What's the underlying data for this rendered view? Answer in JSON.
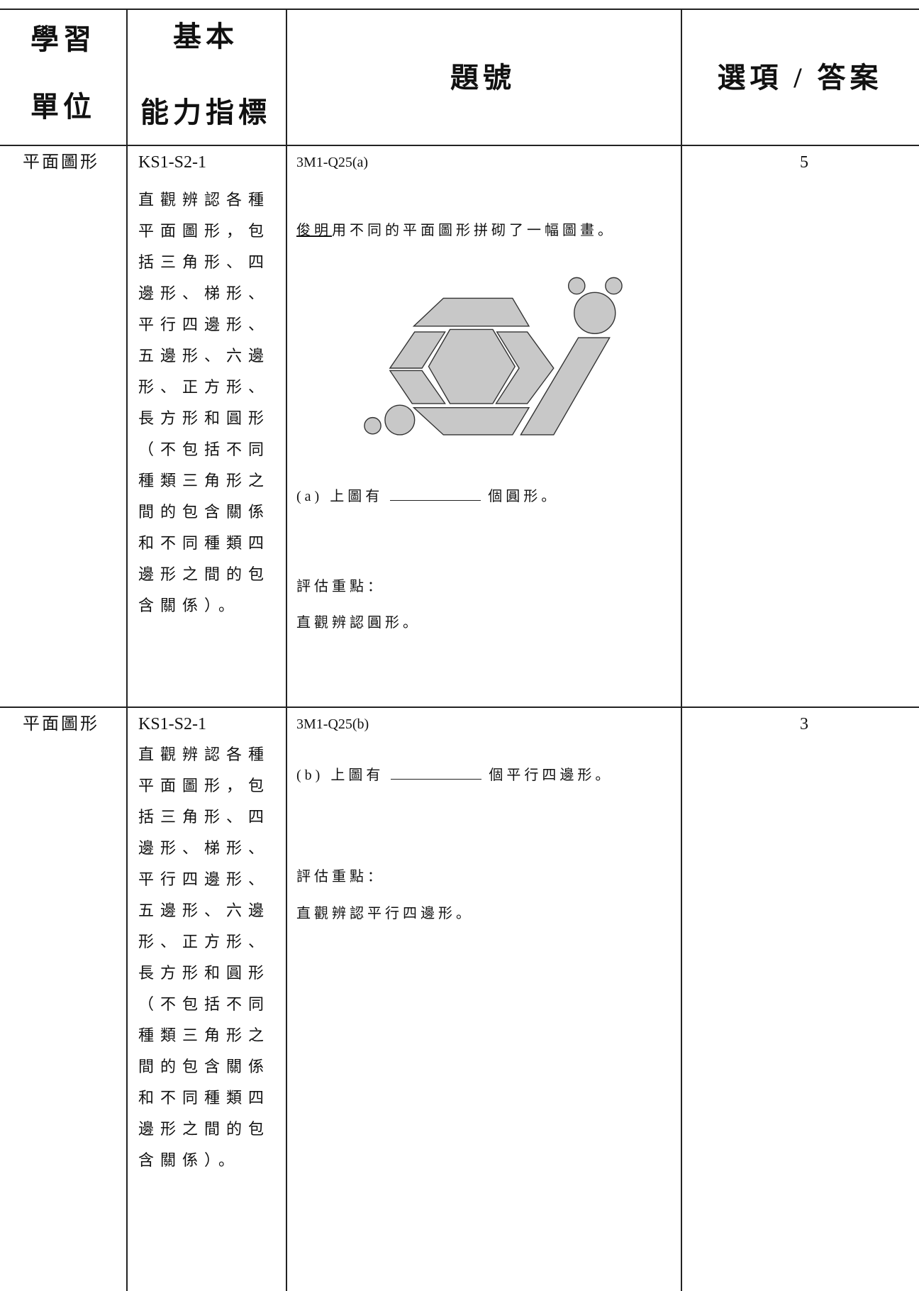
{
  "header": {
    "unit": [
      "學習",
      "單位"
    ],
    "indicator": [
      "基本",
      "能力指標"
    ],
    "question": "題號",
    "answer": "選項 / 答案"
  },
  "rows": [
    {
      "unit": "平面圖形",
      "indicator_code": "KS1-S2-1",
      "indicator_text": "直觀辨認各種平面圖形，包括三角形、四邊形、梯形、平行四邊形、五邊形、六邊形、正方形、長方形和圓形（不包括不同種類三角形之間的包含關係和不同種類四邊形之間的包含關係）。",
      "question_id": "3M1-Q25(a)",
      "intro_name": "俊明",
      "intro_text": "用不同的平面圖形拼砌了一幅圖畫。",
      "question_before": "(a) 上圖有",
      "question_after": "個圓形。",
      "focus_label": "評估重點：",
      "focus_text": "直觀辨認圓形。",
      "answer": "5"
    },
    {
      "unit": "平面圖形",
      "indicator_code": "KS1-S2-1",
      "indicator_text": "直觀辨認各種平面圖形，包括三角形、四邊形、梯形、平行四邊形、五邊形、六邊形、正方形、長方形和圓形（不包括不同種類三角形之間的包含關係和不同種類四邊形之間的包含關係）。",
      "question_id": "3M1-Q25(b)",
      "question_before": "(b) 上圖有",
      "question_after": "個平行四邊形。",
      "focus_label": "評估重點：",
      "focus_text": "直觀辨認平行四邊形。",
      "answer": "3"
    }
  ]
}
